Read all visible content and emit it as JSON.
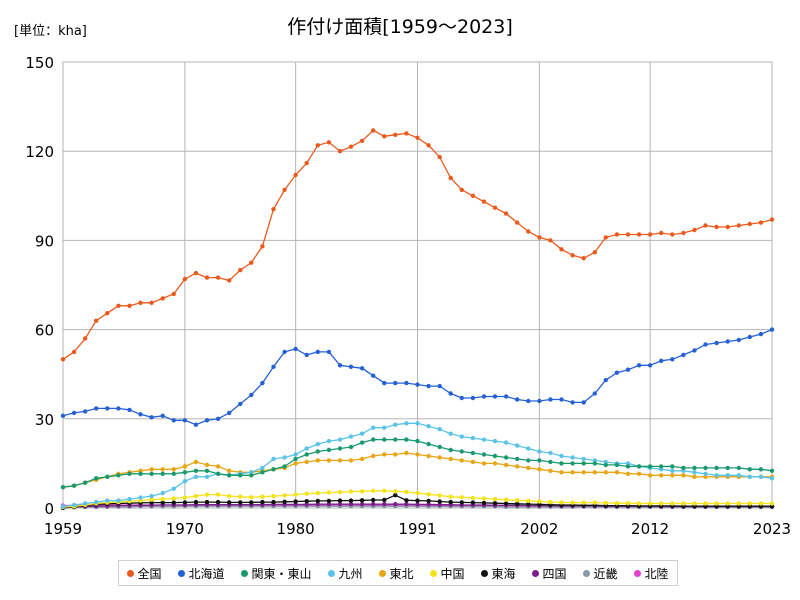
{
  "chart_data": {
    "type": "line",
    "title": "作付け面積[1959～2023]",
    "unit_label": "[単位：kha]",
    "xlim": [
      1959,
      2023
    ],
    "ylim": [
      0,
      150
    ],
    "x_ticks": [
      1959,
      1970,
      1980,
      1991,
      2002,
      2012,
      2023
    ],
    "y_ticks": [
      0,
      30,
      60,
      90,
      120,
      150
    ],
    "grid": true,
    "legend_position": "bottom",
    "x": [
      1959,
      1960,
      1961,
      1962,
      1963,
      1964,
      1965,
      1966,
      1967,
      1968,
      1969,
      1970,
      1971,
      1972,
      1973,
      1974,
      1975,
      1976,
      1977,
      1978,
      1979,
      1980,
      1981,
      1982,
      1983,
      1984,
      1985,
      1986,
      1987,
      1988,
      1989,
      1990,
      1991,
      1992,
      1993,
      1994,
      1995,
      1996,
      1997,
      1998,
      1999,
      2000,
      2001,
      2002,
      2003,
      2004,
      2005,
      2006,
      2007,
      2008,
      2009,
      2010,
      2011,
      2012,
      2013,
      2014,
      2015,
      2016,
      2017,
      2018,
      2019,
      2020,
      2021,
      2022,
      2023
    ],
    "series": [
      {
        "name": "全国",
        "color": "#ea5a1c",
        "values": [
          50,
          52.5,
          57,
          63,
          65.5,
          68,
          68,
          69,
          69,
          70.5,
          72,
          77,
          79,
          77.5,
          77.5,
          76.5,
          80,
          82.5,
          88,
          100.5,
          107,
          112,
          116,
          122,
          123,
          120,
          121.5,
          123.5,
          127,
          125,
          125.5,
          126,
          124.5,
          122,
          118,
          111,
          107,
          105,
          103,
          101,
          99,
          96,
          93,
          91,
          90,
          87,
          85,
          84,
          86,
          91,
          92,
          92,
          92,
          92,
          92.5,
          92,
          92.5,
          93.5,
          95,
          94.5,
          94.5,
          95,
          95.5,
          96,
          97
        ]
      },
      {
        "name": "北海道",
        "color": "#2561d4",
        "values": [
          31,
          32,
          32.5,
          33.5,
          33.5,
          33.5,
          33,
          31.5,
          30.5,
          31,
          29.5,
          29.5,
          28,
          29.5,
          30,
          32,
          35,
          38,
          42,
          47.5,
          52.5,
          53.5,
          51.5,
          52.5,
          52.5,
          48,
          47.5,
          47,
          44.5,
          42,
          42,
          42,
          41.5,
          41,
          41,
          38.5,
          37,
          37,
          37.5,
          37.5,
          37.5,
          36.5,
          36,
          36,
          36.5,
          36.5,
          35.5,
          35.5,
          38.5,
          43,
          45.5,
          46.5,
          48,
          48,
          49.5,
          50,
          51.5,
          53,
          55,
          55.5,
          56,
          56.5,
          57.5,
          58.5,
          60
        ]
      },
      {
        "name": "関東・東山",
        "color": "#1a9a6c",
        "values": [
          7,
          7.5,
          8.5,
          10,
          10.5,
          11,
          11.5,
          11.5,
          11.5,
          11.5,
          11.5,
          12,
          12.5,
          12.5,
          11.5,
          11,
          11,
          11,
          12,
          13,
          14,
          16.5,
          18,
          19,
          19.5,
          20,
          20.5,
          22,
          23,
          23,
          23,
          23,
          22.5,
          21.5,
          20.5,
          19.5,
          19,
          18.5,
          18,
          17.5,
          17,
          16.5,
          16,
          16,
          15.5,
          15,
          15,
          15,
          15,
          14.5,
          14.5,
          14,
          14,
          14,
          14,
          14,
          13.5,
          13.5,
          13.5,
          13.5,
          13.5,
          13.5,
          13,
          13,
          12.5
        ]
      },
      {
        "name": "九州",
        "color": "#5bc3e8",
        "values": [
          0.5,
          1,
          1.5,
          2,
          2.5,
          2.5,
          3,
          3.5,
          4,
          5,
          6.5,
          9,
          10.5,
          10.5,
          11.5,
          11,
          11.5,
          12,
          13.5,
          16.5,
          17,
          18,
          20,
          21.5,
          22.5,
          23,
          24,
          25,
          27,
          27,
          28,
          28.5,
          28.5,
          27.5,
          26.5,
          25,
          24,
          23.5,
          23,
          22.5,
          22,
          21,
          20,
          19,
          18.5,
          17.5,
          17,
          16.5,
          16,
          15.5,
          15,
          15,
          14,
          13.5,
          13,
          12.5,
          12.5,
          12,
          11.5,
          11,
          11,
          11,
          10.5,
          10.5,
          10
        ]
      },
      {
        "name": "東北",
        "color": "#e8a514",
        "values": [
          7,
          7.5,
          8.5,
          9.5,
          10.5,
          11.5,
          12,
          12.5,
          13,
          13,
          13,
          14,
          15.5,
          14.5,
          14,
          12.5,
          12,
          12,
          12.5,
          13,
          13.5,
          15,
          15.5,
          16,
          16,
          16,
          16,
          16.5,
          17.5,
          18,
          18,
          18.5,
          18,
          17.5,
          17,
          16.5,
          16,
          15.5,
          15,
          15,
          14.5,
          14,
          13.5,
          13,
          12.5,
          12,
          12,
          12,
          12,
          12,
          12,
          11.5,
          11.5,
          11,
          11,
          11,
          11,
          10.5,
          10.5,
          10.5,
          10.5,
          10.5,
          10.5,
          10.5,
          10.5
        ]
      },
      {
        "name": "中国",
        "color": "#f4e31c",
        "values": [
          0.3,
          0.5,
          1,
          1.5,
          1.8,
          2,
          2.3,
          2.5,
          2.8,
          3,
          3.2,
          3.5,
          4,
          4.5,
          4.5,
          4,
          3.8,
          3.6,
          3.8,
          4,
          4.2,
          4.5,
          4.8,
          5,
          5.2,
          5.3,
          5.5,
          5.6,
          5.8,
          5.8,
          5.6,
          5.4,
          5,
          4.6,
          4.2,
          3.8,
          3.6,
          3.4,
          3.2,
          3,
          2.8,
          2.6,
          2.4,
          2.2,
          2,
          1.9,
          1.8,
          1.8,
          1.8,
          1.7,
          1.6,
          1.6,
          1.5,
          1.5,
          1.5,
          1.5,
          1.5,
          1.5,
          1.5,
          1.5,
          1.5,
          1.5,
          1.5,
          1.5,
          1.5
        ]
      },
      {
        "name": "東海",
        "color": "#111111",
        "values": [
          0,
          0.3,
          0.8,
          1.2,
          1.4,
          1.5,
          1.6,
          1.7,
          1.8,
          1.8,
          1.8,
          1.9,
          2,
          2,
          2,
          1.9,
          1.9,
          1.9,
          2,
          2,
          2.1,
          2.2,
          2.3,
          2.4,
          2.4,
          2.5,
          2.5,
          2.6,
          2.7,
          2.7,
          4.3,
          2.6,
          2.5,
          2.4,
          2.2,
          2,
          1.9,
          1.8,
          1.7,
          1.6,
          1.5,
          1.4,
          1.3,
          1.2,
          1.1,
          1,
          1,
          0.9,
          0.9,
          0.8,
          0.8,
          0.8,
          0.7,
          0.7,
          0.7,
          0.7,
          0.6,
          0.6,
          0.6,
          0.6,
          0.6,
          0.6,
          0.6,
          0.6,
          0.6
        ]
      },
      {
        "name": "四国",
        "color": "#7a1f8c",
        "values": [
          0.3,
          0.4,
          0.5,
          0.6,
          0.7,
          0.8,
          0.8,
          0.9,
          0.9,
          1,
          1,
          1,
          1.1,
          1.1,
          1.1,
          1.1,
          1.1,
          1.1,
          1.1,
          1.2,
          1.2,
          1.2,
          1.2,
          1.3,
          1.3,
          1.3,
          1.3,
          1.3,
          1.3,
          1.3,
          1.3,
          1.3,
          1.2,
          1.2,
          1.1,
          1.1,
          1,
          1,
          1,
          0.9,
          0.9,
          0.9,
          0.8,
          0.8,
          0.8,
          0.7,
          0.7,
          0.7,
          0.7,
          0.6,
          0.6,
          0.6,
          0.6,
          0.6,
          0.5,
          0.5,
          0.5,
          0.5,
          0.5,
          0.5,
          0.5,
          0.5,
          0.5,
          0.5,
          0.5
        ]
      },
      {
        "name": "近畿",
        "color": "#8a97a6",
        "values": [
          0.2,
          0.2,
          0.3,
          0.3,
          0.4,
          0.4,
          0.4,
          0.5,
          0.5,
          0.5,
          0.5,
          0.6,
          0.6,
          0.6,
          0.6,
          0.6,
          0.6,
          0.6,
          0.6,
          0.6,
          0.6,
          0.6,
          0.6,
          0.6,
          0.6,
          0.6,
          0.6,
          0.6,
          0.6,
          0.6,
          0.6,
          0.6,
          0.6,
          0.5,
          0.5,
          0.5,
          0.5,
          0.5,
          0.5,
          0.5,
          0.4,
          0.4,
          0.4,
          0.4,
          0.4,
          0.4,
          0.4,
          0.4,
          0.4,
          0.4,
          0.3,
          0.3,
          0.3,
          0.3,
          0.3,
          0.3,
          0.3,
          0.3,
          0.3,
          0.3,
          0.3,
          0.3,
          0.3,
          0.3,
          0.3
        ]
      },
      {
        "name": "北陸",
        "color": "#e23ed1",
        "values": [
          0.8,
          0.9,
          1,
          1,
          1,
          1,
          1,
          1,
          1,
          1,
          1,
          1,
          1,
          1,
          1,
          1,
          1,
          1,
          1,
          1,
          1,
          1,
          1,
          1,
          1,
          1,
          1,
          1,
          1,
          1,
          1,
          1,
          1,
          0.9,
          0.9,
          0.9,
          0.9,
          0.8,
          0.8,
          0.8,
          0.8,
          0.8,
          0.7,
          0.7,
          0.7,
          0.7,
          0.7,
          0.6,
          0.6,
          0.6,
          0.6,
          0.6,
          0.5,
          0.5,
          0.5,
          0.5,
          0.5,
          0.5,
          0.5,
          0.5,
          0.5,
          0.5,
          0.5,
          0.5,
          0.5
        ]
      }
    ]
  }
}
